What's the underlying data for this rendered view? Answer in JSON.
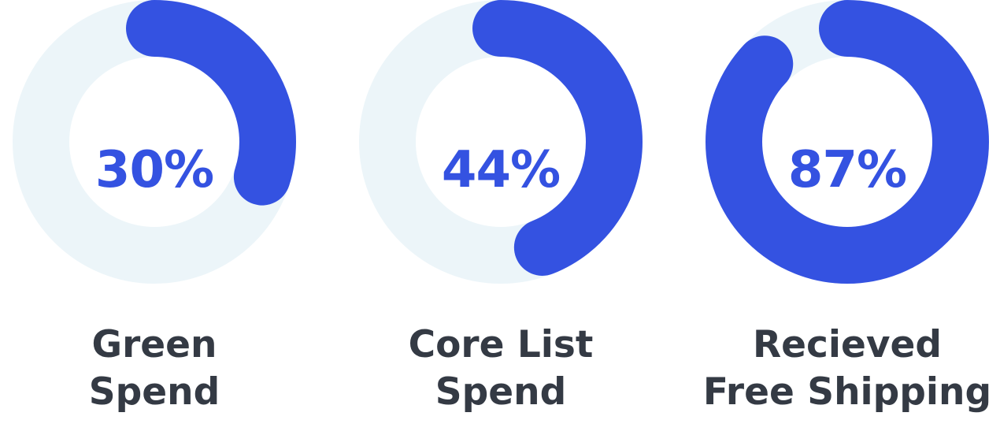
{
  "colors": {
    "accent": "#3452e1",
    "track": "#ecf5f9",
    "label": "#343a44"
  },
  "chart_data": [
    {
      "type": "donut",
      "value": 30,
      "display": "30%",
      "label_lines": [
        "Green",
        "Spend"
      ]
    },
    {
      "type": "donut",
      "value": 44,
      "display": "44%",
      "label_lines": [
        "Core List",
        "Spend"
      ]
    },
    {
      "type": "donut",
      "value": 87,
      "display": "87%",
      "label_lines": [
        "Recieved",
        "Free Shipping"
      ]
    }
  ]
}
